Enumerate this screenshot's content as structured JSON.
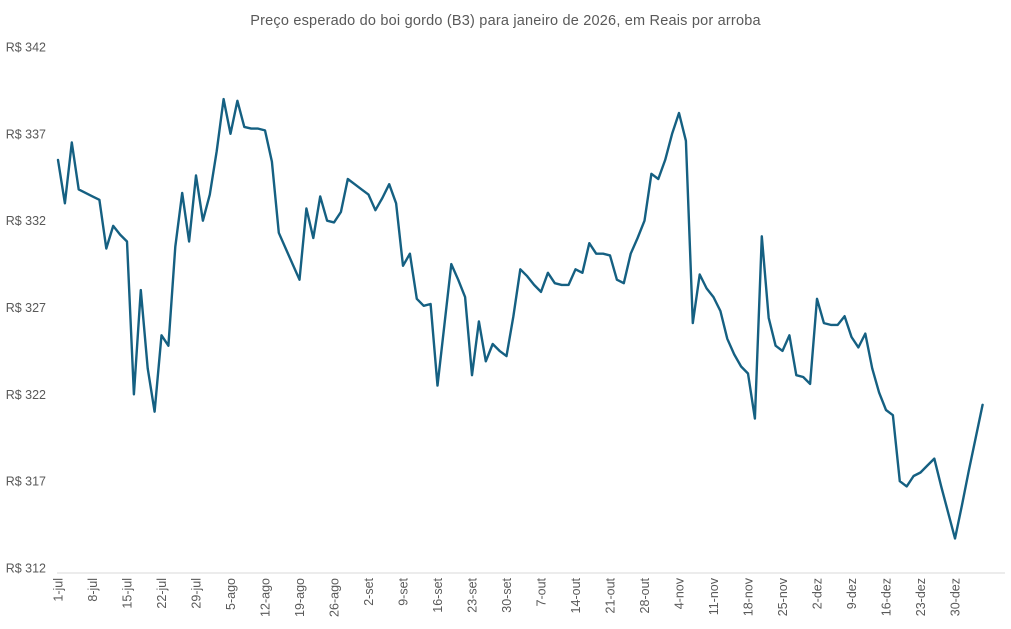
{
  "chart_data": {
    "type": "line",
    "title": "Preço esperado do boi gordo (B3) para janeiro de 2026, em Reais por arroba",
    "ylabel": "",
    "xlabel": "",
    "ylim": [
      312,
      342
    ],
    "y_tick_prefix": "R$ ",
    "y_ticks": [
      342,
      337,
      332,
      327,
      322,
      317,
      312
    ],
    "grid": "off",
    "legend": "none",
    "line_color": "#156082",
    "axis_color": "#d9d9d9",
    "text_color": "#595959",
    "x_tick_step": 5,
    "x_tick_labels": [
      "1-jul",
      "8-jul",
      "15-jul",
      "22-jul",
      "29-jul",
      "5-ago",
      "12-ago",
      "19-ago",
      "26-ago",
      "2-set",
      "9-set",
      "16-set",
      "23-set",
      "30-set",
      "7-out",
      "14-out",
      "21-out",
      "28-out",
      "4-nov",
      "11-nov",
      "18-nov",
      "25-nov",
      "2-dez",
      "9-dez",
      "16-dez",
      "23-dez",
      "30-dez"
    ],
    "values": [
      335.5,
      333.0,
      336.5,
      333.8,
      333.6,
      333.4,
      333.2,
      330.4,
      331.7,
      331.2,
      330.8,
      322.0,
      328.0,
      323.5,
      321.0,
      325.4,
      324.8,
      330.5,
      333.6,
      330.8,
      334.6,
      332.0,
      333.5,
      336.0,
      339.0,
      337.0,
      338.9,
      337.4,
      337.3,
      337.3,
      337.2,
      335.4,
      331.3,
      330.4,
      329.5,
      328.6,
      332.7,
      331.0,
      333.4,
      332.0,
      331.9,
      332.5,
      334.4,
      334.1,
      333.8,
      333.5,
      332.6,
      333.3,
      334.1,
      333.0,
      329.4,
      330.1,
      327.5,
      327.1,
      327.2,
      322.5,
      326.0,
      329.5,
      328.6,
      327.6,
      323.1,
      326.2,
      323.9,
      324.9,
      324.5,
      324.2,
      326.5,
      329.2,
      328.8,
      328.3,
      327.9,
      329.0,
      328.4,
      328.3,
      328.3,
      329.2,
      329.0,
      330.7,
      330.1,
      330.1,
      330.0,
      328.6,
      328.4,
      330.1,
      331.0,
      332.0,
      334.7,
      334.4,
      335.5,
      337.0,
      338.2,
      336.6,
      326.1,
      328.9,
      328.1,
      327.6,
      326.8,
      325.2,
      324.3,
      323.6,
      323.2,
      320.6,
      331.1,
      326.4,
      324.8,
      324.5,
      325.4,
      323.1,
      323.0,
      322.6,
      327.5,
      326.1,
      326.0,
      326.0,
      326.5,
      325.3,
      324.7,
      325.5,
      323.5,
      322.1,
      321.1,
      320.8,
      317.0,
      316.7,
      317.3,
      317.5,
      317.9,
      318.3,
      316.7,
      315.2,
      313.7,
      315.6,
      317.6,
      319.5,
      321.4
    ]
  }
}
